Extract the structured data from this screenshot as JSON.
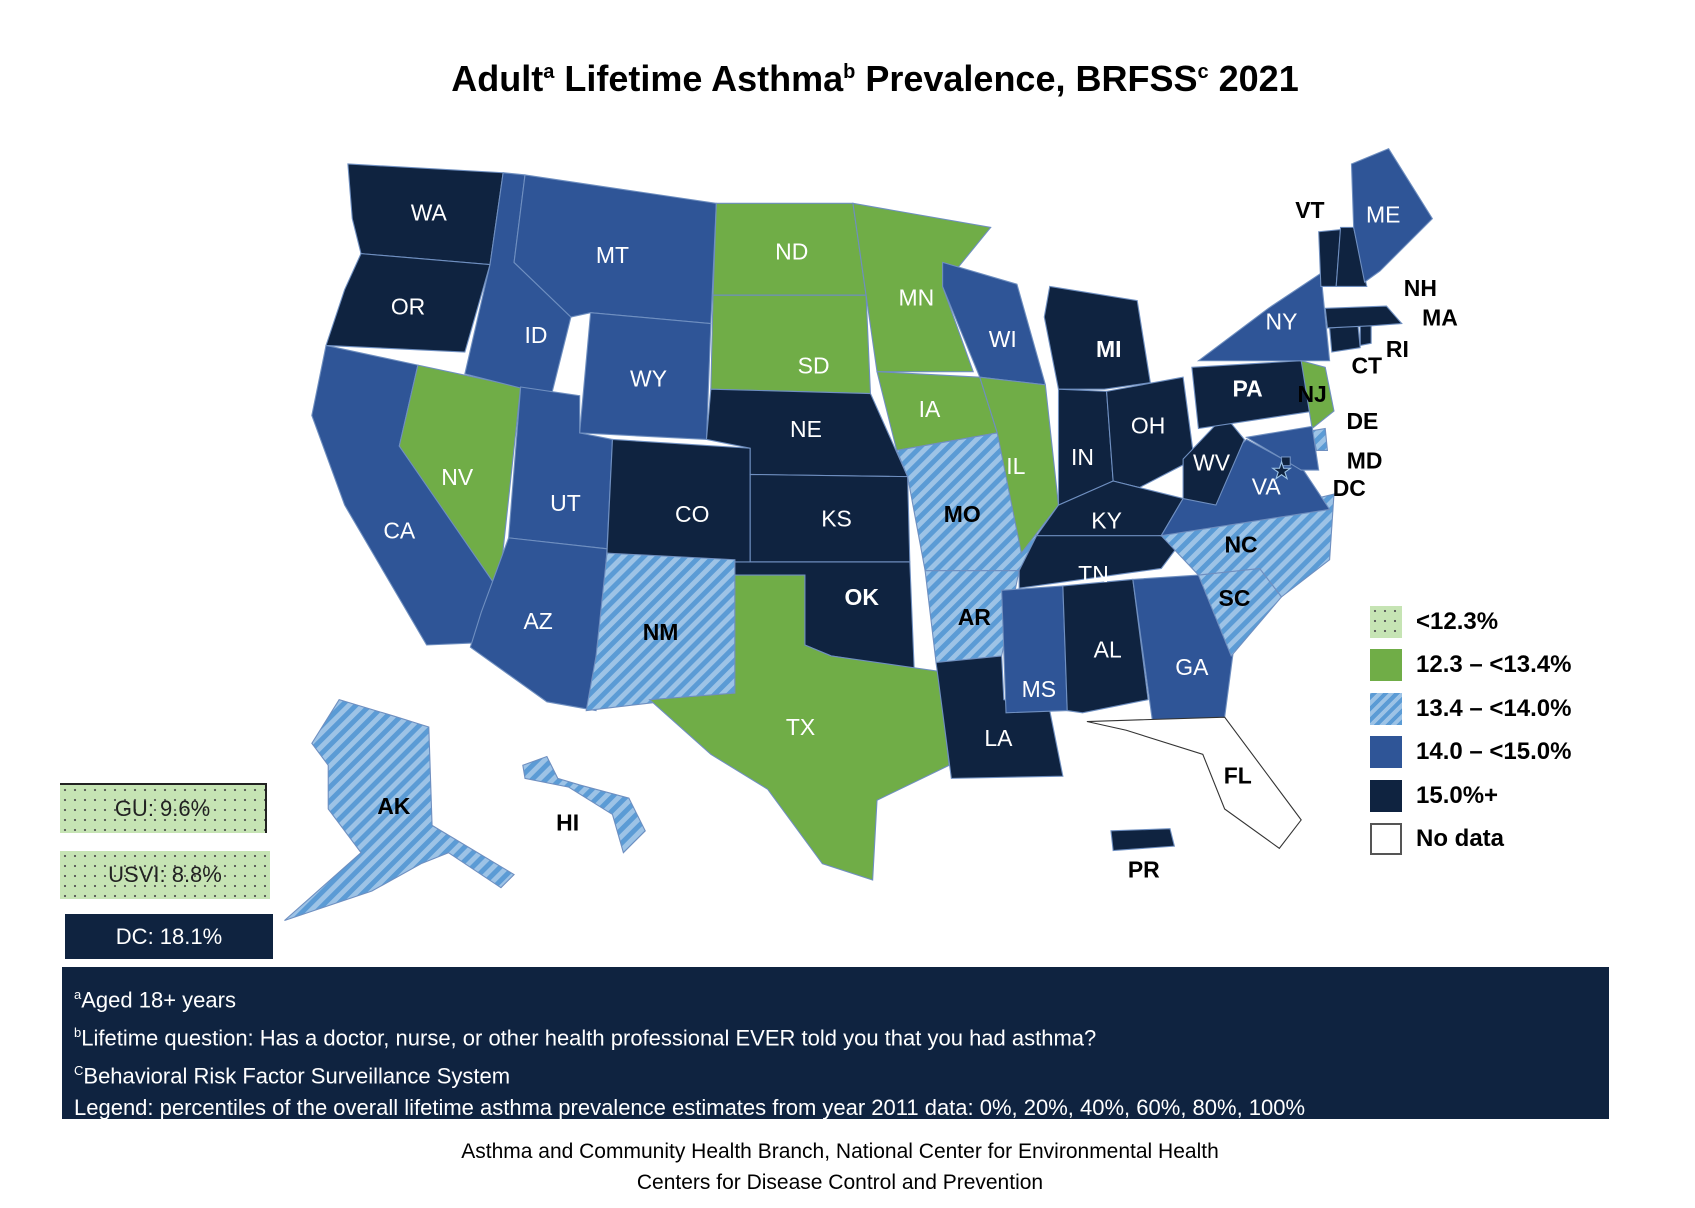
{
  "title": {
    "main1": "Adult",
    "sup_a": "a",
    "main2": " Lifetime Asthma",
    "sup_b": "b",
    "main3": " Prevalence, BRFSS",
    "sup_c": "c",
    "main4": " 2021"
  },
  "colors": {
    "lt12_3": "#c6e4b4",
    "g12_3": "#70ad47",
    "g13_4_stripe_light": "#9dc3e6",
    "g13_4_stripe_dark": "#5b9bd5",
    "g14_0": "#2f5597",
    "g15_0": "#0f2340",
    "nodata": "#ffffff"
  },
  "legend": [
    {
      "key": "lt12_3",
      "label": "<12.3%"
    },
    {
      "key": "g12_3",
      "label": "12.3 – <13.4%"
    },
    {
      "key": "g13_4",
      "label": "13.4 – <14.0%"
    },
    {
      "key": "g14_0",
      "label": "14.0 – <15.0%"
    },
    {
      "key": "g15_0",
      "label": "15.0%+"
    },
    {
      "key": "nodata",
      "label": "No data"
    }
  ],
  "territories": [
    {
      "label": "GU: 9.6%",
      "key": "lt12_3"
    },
    {
      "label": "USVI: 8.8%",
      "key": "lt12_3"
    },
    {
      "label": "DC: 18.1%",
      "key": "g15_0"
    }
  ],
  "chart_data": {
    "type": "choropleth",
    "title": "Adult Lifetime Asthma Prevalence, BRFSS 2021",
    "bins": [
      "<12.3%",
      "12.3 – <13.4%",
      "13.4 – <14.0%",
      "14.0 – <15.0%",
      "15.0%+",
      "No data"
    ],
    "states": [
      {
        "abbr": "WA",
        "key": "g15_0"
      },
      {
        "abbr": "OR",
        "key": "g15_0"
      },
      {
        "abbr": "CA",
        "key": "g14_0"
      },
      {
        "abbr": "NV",
        "key": "g12_3"
      },
      {
        "abbr": "ID",
        "key": "g14_0"
      },
      {
        "abbr": "MT",
        "key": "g14_0"
      },
      {
        "abbr": "WY",
        "key": "g14_0"
      },
      {
        "abbr": "UT",
        "key": "g14_0"
      },
      {
        "abbr": "AZ",
        "key": "g14_0"
      },
      {
        "abbr": "CO",
        "key": "g15_0"
      },
      {
        "abbr": "NM",
        "key": "g13_4"
      },
      {
        "abbr": "ND",
        "key": "g12_3"
      },
      {
        "abbr": "SD",
        "key": "g12_3"
      },
      {
        "abbr": "NE",
        "key": "g15_0"
      },
      {
        "abbr": "KS",
        "key": "g15_0"
      },
      {
        "abbr": "OK",
        "key": "g15_0"
      },
      {
        "abbr": "TX",
        "key": "g12_3"
      },
      {
        "abbr": "MN",
        "key": "g12_3"
      },
      {
        "abbr": "IA",
        "key": "g12_3"
      },
      {
        "abbr": "MO",
        "key": "g13_4"
      },
      {
        "abbr": "AR",
        "key": "g13_4"
      },
      {
        "abbr": "LA",
        "key": "g15_0"
      },
      {
        "abbr": "WI",
        "key": "g14_0"
      },
      {
        "abbr": "IL",
        "key": "g12_3"
      },
      {
        "abbr": "MI",
        "key": "g15_0"
      },
      {
        "abbr": "IN",
        "key": "g15_0"
      },
      {
        "abbr": "OH",
        "key": "g15_0"
      },
      {
        "abbr": "KY",
        "key": "g15_0"
      },
      {
        "abbr": "TN",
        "key": "g15_0"
      },
      {
        "abbr": "MS",
        "key": "g14_0"
      },
      {
        "abbr": "AL",
        "key": "g15_0"
      },
      {
        "abbr": "GA",
        "key": "g14_0"
      },
      {
        "abbr": "FL",
        "key": "nodata"
      },
      {
        "abbr": "SC",
        "key": "g13_4"
      },
      {
        "abbr": "NC",
        "key": "g13_4"
      },
      {
        "abbr": "VA",
        "key": "g14_0"
      },
      {
        "abbr": "WV",
        "key": "g15_0"
      },
      {
        "abbr": "PA",
        "key": "g15_0"
      },
      {
        "abbr": "NY",
        "key": "g14_0"
      },
      {
        "abbr": "NJ",
        "key": "g12_3"
      },
      {
        "abbr": "DE",
        "key": "g13_4"
      },
      {
        "abbr": "MD",
        "key": "g14_0"
      },
      {
        "abbr": "DC",
        "key": "g15_0"
      },
      {
        "abbr": "CT",
        "key": "g15_0"
      },
      {
        "abbr": "RI",
        "key": "g15_0"
      },
      {
        "abbr": "MA",
        "key": "g15_0"
      },
      {
        "abbr": "VT",
        "key": "g15_0"
      },
      {
        "abbr": "NH",
        "key": "g15_0"
      },
      {
        "abbr": "ME",
        "key": "g14_0"
      },
      {
        "abbr": "AK",
        "key": "g13_4"
      },
      {
        "abbr": "HI",
        "key": "g13_4"
      },
      {
        "abbr": "PR",
        "key": "g15_0"
      }
    ]
  },
  "footnotes": {
    "a_sup": "a",
    "a": "Aged 18+ years",
    "b_sup": "b",
    "b": "Lifetime question: Has a doctor, nurse, or other health professional EVER told you that you had asthma?",
    "c_sup": "C",
    "c": "Behavioral  Risk Factor Surveillance System",
    "legend_note": "Legend: percentiles of the overall lifetime asthma prevalence estimates from year 2011 data: 0%, 20%, 40%, 60%, 80%, 100%"
  },
  "credit": {
    "line1": "Asthma and Community Health Branch, National Center for Environmental Health",
    "line2": "Centers for Disease Control and Prevention"
  }
}
